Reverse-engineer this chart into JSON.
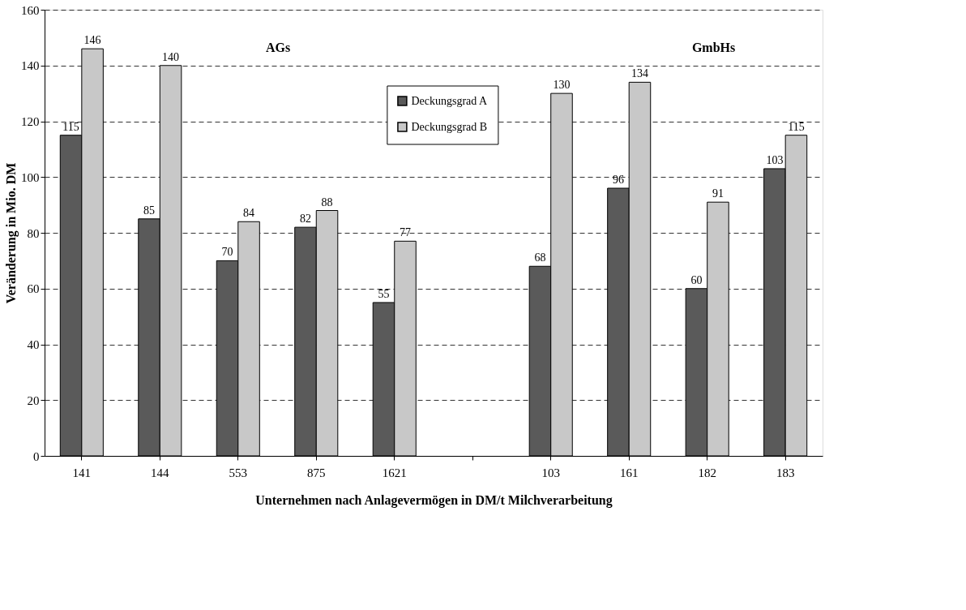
{
  "chart_data": {
    "type": "bar",
    "xlabel": "Unternehmen nach Anlagevermögen in DM/t Milchverarbeitung",
    "ylabel": "Veränderung in Mio. DM",
    "categories": [
      "141",
      "144",
      "553",
      "875",
      "1621",
      null,
      "103",
      "161",
      "182",
      "183"
    ],
    "series": [
      {
        "name": "Deckungsgrad A",
        "color": "#5a5a5a",
        "values": [
          115,
          85,
          70,
          82,
          55,
          null,
          68,
          96,
          60,
          103
        ]
      },
      {
        "name": "Deckungsgrad B",
        "color": "#c8c8c8",
        "values": [
          146,
          140,
          84,
          88,
          77,
          null,
          130,
          134,
          91,
          115
        ]
      }
    ],
    "ylim": [
      0,
      160
    ],
    "yticks": [
      0,
      20,
      40,
      60,
      80,
      100,
      120,
      140,
      160
    ],
    "grid": "y",
    "legend": "top",
    "data_labels": true,
    "annotations": [
      "AGs",
      "GmbHs"
    ]
  }
}
